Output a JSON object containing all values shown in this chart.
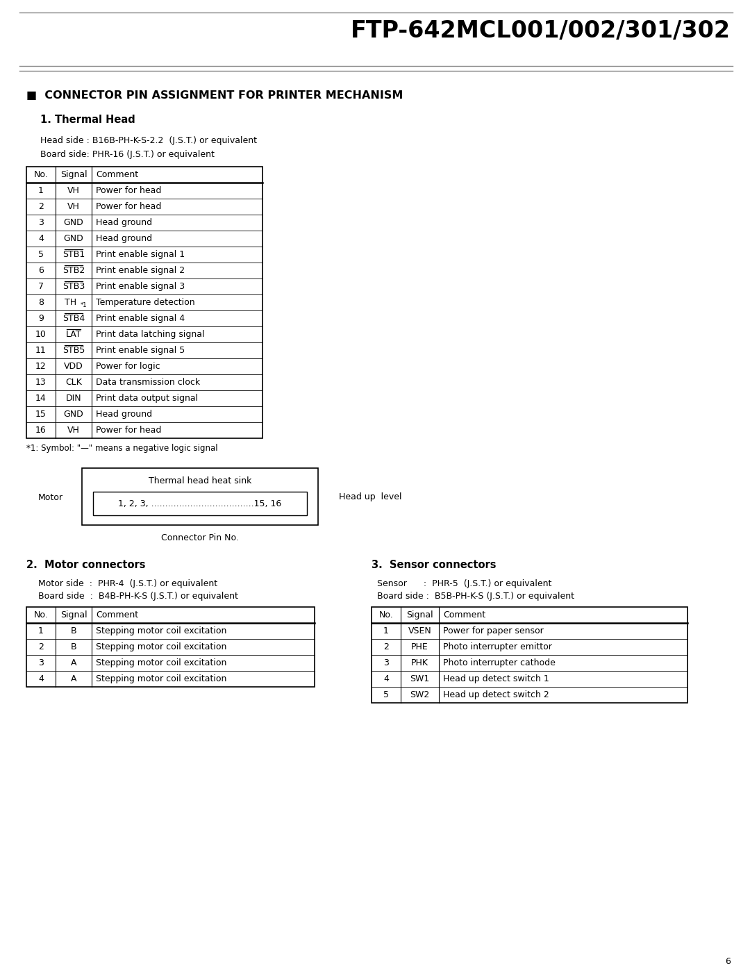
{
  "title": "FTP-642MCL001/002/301/302",
  "section_title": "■  CONNECTOR PIN ASSIGNMENT FOR PRINTER MECHANISM",
  "thermal_head_title": "1. Thermal Head",
  "thermal_head_side": "Head side : B16B-PH-K-S-2.2  (J.S.T.) or equivalent",
  "thermal_board_side": "Board side: PHR-16 (J.S.T.) or equivalent",
  "thermal_table_headers": [
    "No.",
    "Signal",
    "Comment"
  ],
  "thermal_table_data": [
    [
      "1",
      "VH",
      "Power for head"
    ],
    [
      "2",
      "VH",
      "Power for head"
    ],
    [
      "3",
      "GND",
      "Head ground"
    ],
    [
      "4",
      "GND",
      "Head ground"
    ],
    [
      "5",
      "STB1",
      "Print enable signal 1"
    ],
    [
      "6",
      "STB2",
      "Print enable signal 2"
    ],
    [
      "7",
      "STB3",
      "Print enable signal 3"
    ],
    [
      "8",
      "TH*1",
      "Temperature detection"
    ],
    [
      "9",
      "STB4",
      "Print enable signal 4"
    ],
    [
      "10",
      "LAT",
      "Print data latching signal"
    ],
    [
      "11",
      "STB5",
      "Print enable signal 5"
    ],
    [
      "12",
      "VDD",
      "Power for logic"
    ],
    [
      "13",
      "CLK",
      "Data transmission clock"
    ],
    [
      "14",
      "DIN",
      "Print data output signal"
    ],
    [
      "15",
      "GND",
      "Head ground"
    ],
    [
      "16",
      "VH",
      "Power for head"
    ]
  ],
  "overline_signals": [
    "STB1",
    "STB2",
    "STB3",
    "STB4",
    "LAT",
    "STB5"
  ],
  "footnote": "*1: Symbol: \"—\" means a negative logic signal",
  "diagram_label_motor": "Motor",
  "diagram_label_head_up": "Head up  level",
  "diagram_upper_text": "Thermal head heat sink",
  "diagram_lower_text": "1, 2, 3, .....................................15, 16",
  "diagram_connector_label": "Connector Pin No.",
  "motor_title": "2.  Motor connectors",
  "motor_side": "Motor side  :  PHR-4  (J.S.T.) or equivalent",
  "motor_board_side": "Board side  :  B4B-PH-K-S (J.S.T.) or equivalent",
  "motor_table_headers": [
    "No.",
    "Signal",
    "Comment"
  ],
  "motor_table_data": [
    [
      "1",
      "B",
      "Stepping motor coil excitation"
    ],
    [
      "2",
      "B",
      "Stepping motor coil excitation"
    ],
    [
      "3",
      "A",
      "Stepping motor coil excitation"
    ],
    [
      "4",
      "A",
      "Stepping motor coil excitation"
    ]
  ],
  "sensor_title": "3.  Sensor connectors",
  "sensor_side": "Sensor      :  PHR-5  (J.S.T.) or equivalent",
  "sensor_board_side": "Board side :  B5B-PH-K-S (J.S.T.) or equivalent",
  "sensor_table_headers": [
    "No.",
    "Signal",
    "Comment"
  ],
  "sensor_table_data": [
    [
      "1",
      "VSEN",
      "Power for paper sensor"
    ],
    [
      "2",
      "PHE",
      "Photo interrupter emittor"
    ],
    [
      "3",
      "PHK",
      "Photo interrupter cathode"
    ],
    [
      "4",
      "SW1",
      "Head up detect switch 1"
    ],
    [
      "5",
      "SW2",
      "Head up detect switch 2"
    ]
  ],
  "page_number": "6",
  "bg_color": "#ffffff"
}
